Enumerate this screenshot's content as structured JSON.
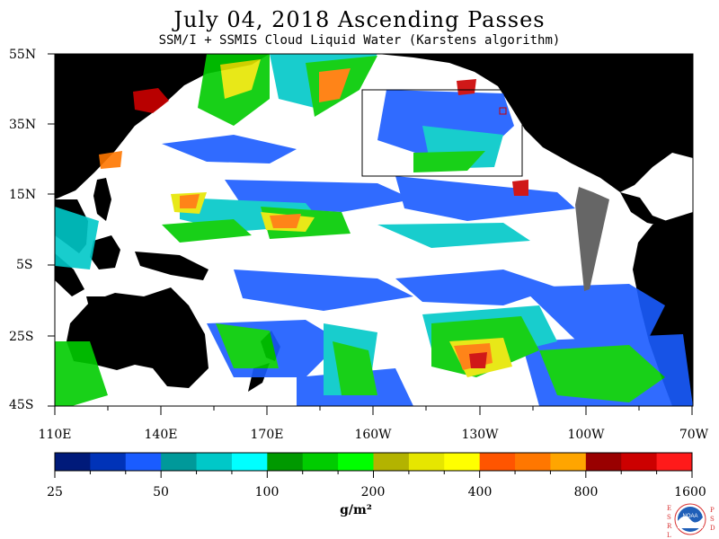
{
  "header": {
    "title": "July 04, 2018  Ascending Passes",
    "subtitle": "SSM/I + SSMIS Cloud Liquid Water (Karstens algorithm)"
  },
  "map": {
    "lat_labels": [
      "55N",
      "35N",
      "15N",
      "5S",
      "25S",
      "45S"
    ],
    "lon_labels": [
      "110E",
      "140E",
      "170E",
      "160W",
      "130W",
      "100W",
      "70W"
    ]
  },
  "colorbar": {
    "labels": [
      "25",
      "50",
      "100",
      "200",
      "400",
      "800",
      "1600"
    ],
    "unit": "g/m²",
    "colors": [
      "#001a7a",
      "#0033b8",
      "#1a5cff",
      "#00999a",
      "#00c8c8",
      "#00ffff",
      "#009900",
      "#00cc00",
      "#00ff00",
      "#b3b300",
      "#e6e600",
      "#ffff00",
      "#ff5500",
      "#ff7700",
      "#ffa500",
      "#990000",
      "#cc0000",
      "#ff1a1a"
    ]
  },
  "logo": {
    "left_letters": "ESRL",
    "right_letters": "PSD",
    "center": "NOAA"
  }
}
